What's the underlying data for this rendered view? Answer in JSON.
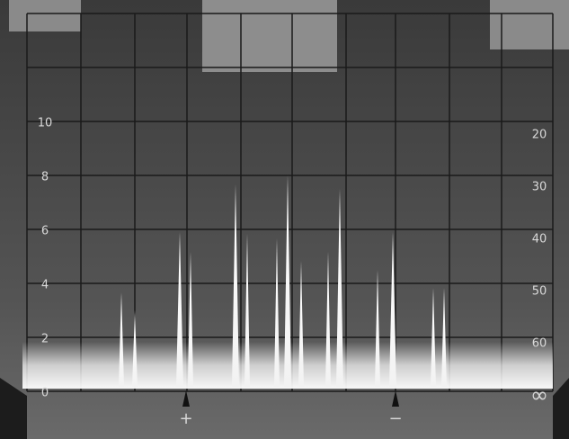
{
  "screen": {
    "left_scale": [
      "0",
      "2",
      "4",
      "6",
      "8",
      "10"
    ],
    "right_scale": [
      "∞",
      "60",
      "50",
      "40",
      "30",
      "20"
    ],
    "markers": [
      "+",
      "−"
    ]
  }
}
